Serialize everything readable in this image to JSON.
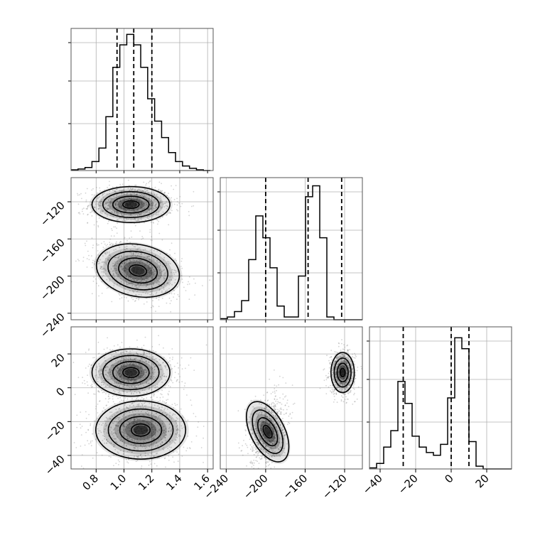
{
  "chart_data": {
    "type": "corner",
    "style": {
      "grid": true,
      "line_color": "#000000",
      "scatter_color": "#808080"
    },
    "parameters": [
      {
        "xlim": [
          0.62,
          1.64
        ],
        "ticks": [
          0.8,
          1.0,
          1.2,
          1.4,
          1.6
        ],
        "tick_labels": [
          "0.8",
          "1.0",
          "1.2",
          "1.4",
          "1.6"
        ],
        "quantiles": [
          0.95,
          1.07,
          1.2
        ]
      },
      {
        "xlim": [
          -246,
          -102
        ],
        "ticks": [
          -240,
          -200,
          -160,
          -120
        ],
        "tick_labels": [
          "−240",
          "−200",
          "−160",
          "−120"
        ],
        "quantiles": [
          -200,
          -157,
          -123
        ]
      },
      {
        "xlim": [
          -46,
          34
        ],
        "ticks": [
          -40,
          -20,
          0,
          20
        ],
        "tick_labels": [
          "−40",
          "−20",
          "0",
          "20"
        ],
        "quantiles": [
          -27,
          0,
          10
        ]
      }
    ],
    "histograms": [
      {
        "param": 0,
        "bin_start": 0.62,
        "bin_width": 0.05,
        "counts": [
          1,
          2,
          4,
          12,
          30,
          72,
          138,
          168,
          182,
          168,
          138,
          96,
          66,
          44,
          24,
          12,
          6,
          3,
          1,
          0
        ],
        "ymax": 190
      },
      {
        "param": 1,
        "bin_start": -246,
        "bin_width": 7.2,
        "counts": [
          2,
          5,
          15,
          35,
          110,
          190,
          150,
          95,
          25,
          5,
          5,
          80,
          225,
          245,
          150,
          5,
          0,
          0,
          0,
          0
        ],
        "ymax": 260
      },
      {
        "param": 2,
        "bin_start": -46,
        "bin_width": 4,
        "counts": [
          2,
          10,
          40,
          70,
          160,
          120,
          60,
          40,
          30,
          25,
          45,
          130,
          240,
          220,
          50,
          5,
          0,
          0,
          0,
          0
        ],
        "ymax": 260
      }
    ],
    "pairs": [
      {
        "x": 0,
        "y": 1,
        "ylim": [
          -247,
          -94
        ],
        "yticks": [
          -240,
          -200,
          -160,
          -120
        ],
        "ytick_labels": [
          "−240",
          "−200",
          "−160",
          "−120"
        ],
        "modes": [
          {
            "center": [
              1.05,
              -123
            ],
            "spread": [
              0.13,
              9
            ],
            "rot": 0
          },
          {
            "center": [
              1.1,
              -194
            ],
            "spread": [
              0.14,
              13
            ],
            "rot": -0.35
          }
        ]
      },
      {
        "x": 0,
        "y": 2,
        "ylim": [
          -48,
          36
        ],
        "yticks": [
          -40,
          -20,
          0,
          20
        ],
        "ytick_labels": [
          "−40",
          "−20",
          "0",
          "20"
        ],
        "modes": [
          {
            "center": [
              1.05,
              9
            ],
            "spread": [
              0.13,
              6.5
            ],
            "rot": 0
          },
          {
            "center": [
              1.12,
              -25
            ],
            "spread": [
              0.15,
              8
            ],
            "rot": 0
          }
        ]
      },
      {
        "x": 1,
        "y": 2,
        "ylim": [
          -48,
          36
        ],
        "modes": [
          {
            "center": [
              -122,
              9
            ],
            "spread": [
              5.5,
              5.5
            ],
            "rot": 0
          },
          {
            "center": [
              -198,
              -26
            ],
            "spread": [
              8,
              9
            ],
            "rot": 0.3
          }
        ]
      }
    ]
  }
}
